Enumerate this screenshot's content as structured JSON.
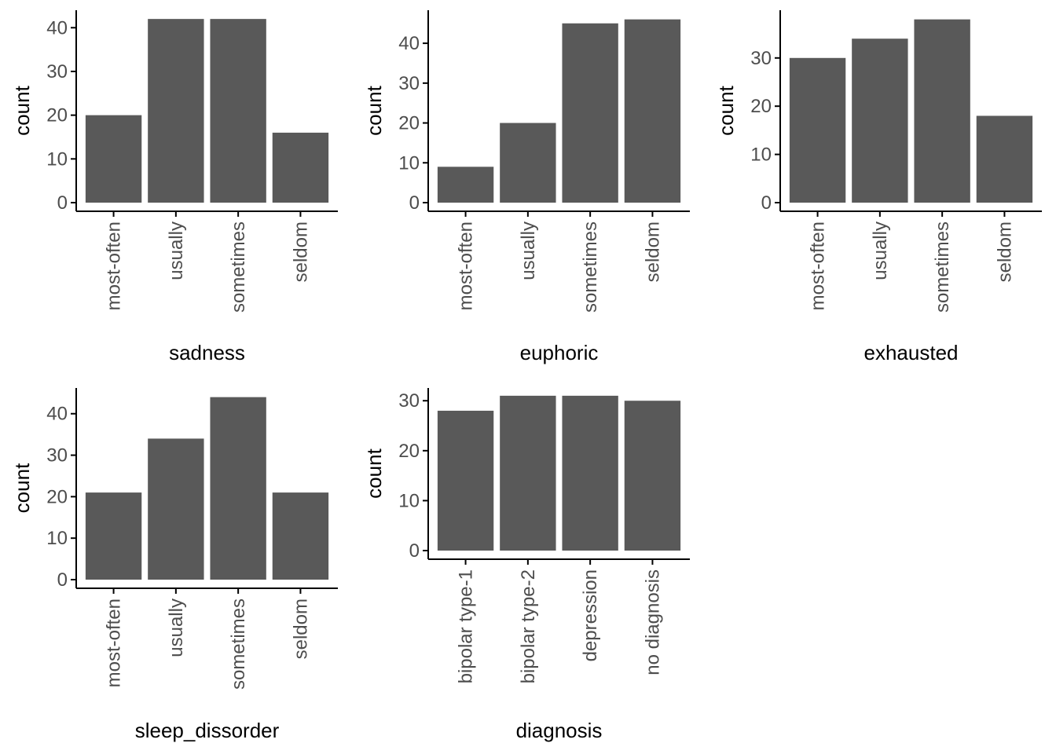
{
  "colors": {
    "bar": "#595959",
    "axis": "#000000",
    "tick_text": "#4d4d4d",
    "background": "#ffffff"
  },
  "chart_data": [
    {
      "type": "bar",
      "xlabel": "sadness",
      "ylabel": "count",
      "categories": [
        "most-often",
        "usually",
        "sometimes",
        "seldom"
      ],
      "values": [
        20,
        42,
        42,
        16
      ],
      "yticks": [
        0,
        10,
        20,
        30,
        40
      ],
      "ylim": [
        0,
        44
      ],
      "grid": false
    },
    {
      "type": "bar",
      "xlabel": "euphoric",
      "ylabel": "count",
      "categories": [
        "most-often",
        "usually",
        "sometimes",
        "seldom"
      ],
      "values": [
        9,
        20,
        45,
        46
      ],
      "yticks": [
        0,
        10,
        20,
        30,
        40
      ],
      "ylim": [
        0,
        48.3
      ],
      "grid": false
    },
    {
      "type": "bar",
      "xlabel": "exhausted",
      "ylabel": "count",
      "categories": [
        "most-often",
        "usually",
        "sometimes",
        "seldom"
      ],
      "values": [
        30,
        34,
        38,
        18
      ],
      "yticks": [
        0,
        10,
        20,
        30
      ],
      "ylim": [
        0,
        39.9
      ],
      "grid": false
    },
    {
      "type": "bar",
      "xlabel": "sleep_dissorder",
      "ylabel": "count",
      "categories": [
        "most-often",
        "usually",
        "sometimes",
        "seldom"
      ],
      "values": [
        21,
        34,
        44,
        21
      ],
      "yticks": [
        0,
        10,
        20,
        30,
        40
      ],
      "ylim": [
        0,
        46.2
      ],
      "grid": false
    },
    {
      "type": "bar",
      "xlabel": "diagnosis",
      "ylabel": "count",
      "categories": [
        "bipolar type-1",
        "bipolar type-2",
        "depression",
        "no diagnosis"
      ],
      "values": [
        28,
        31,
        31,
        30
      ],
      "yticks": [
        0,
        10,
        20,
        30
      ],
      "ylim": [
        0,
        32.55
      ],
      "grid": false
    }
  ]
}
